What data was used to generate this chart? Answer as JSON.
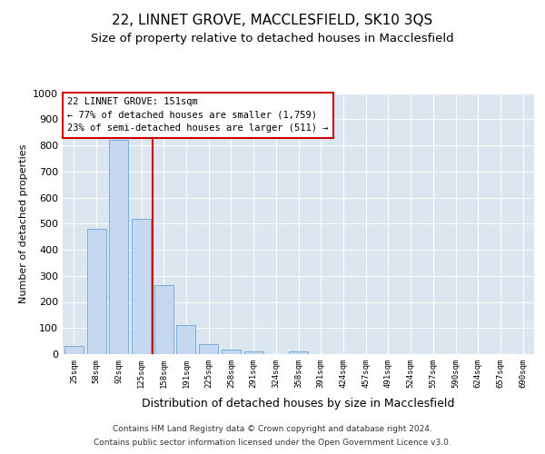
{
  "title_line1": "22, LINNET GROVE, MACCLESFIELD, SK10 3QS",
  "title_line2": "Size of property relative to detached houses in Macclesfield",
  "xlabel": "Distribution of detached houses by size in Macclesfield",
  "ylabel": "Number of detached properties",
  "footer_line1": "Contains HM Land Registry data © Crown copyright and database right 2024.",
  "footer_line2": "Contains public sector information licensed under the Open Government Licence v3.0.",
  "bins": [
    "25sqm",
    "58sqm",
    "92sqm",
    "125sqm",
    "158sqm",
    "191sqm",
    "225sqm",
    "258sqm",
    "291sqm",
    "324sqm",
    "358sqm",
    "391sqm",
    "424sqm",
    "457sqm",
    "491sqm",
    "524sqm",
    "557sqm",
    "590sqm",
    "624sqm",
    "657sqm",
    "690sqm"
  ],
  "values": [
    30,
    480,
    820,
    520,
    265,
    110,
    40,
    17,
    10,
    0,
    10,
    0,
    0,
    0,
    0,
    0,
    0,
    0,
    0,
    0,
    0
  ],
  "bar_color": "#c5d8f0",
  "bar_edge_color": "#7aadd4",
  "vline_color": "#cc0000",
  "annotation_text": "22 LINNET GROVE: 151sqm\n← 77% of detached houses are smaller (1,759)\n23% of semi-detached houses are larger (511) →",
  "annotation_box_color": "#cc0000",
  "ylim": [
    0,
    1000
  ],
  "yticks": [
    0,
    100,
    200,
    300,
    400,
    500,
    600,
    700,
    800,
    900,
    1000
  ],
  "fig_background": "#ffffff",
  "plot_background": "#dce6f0",
  "grid_color": "#ffffff",
  "title_fontsize": 11,
  "subtitle_fontsize": 9.5
}
